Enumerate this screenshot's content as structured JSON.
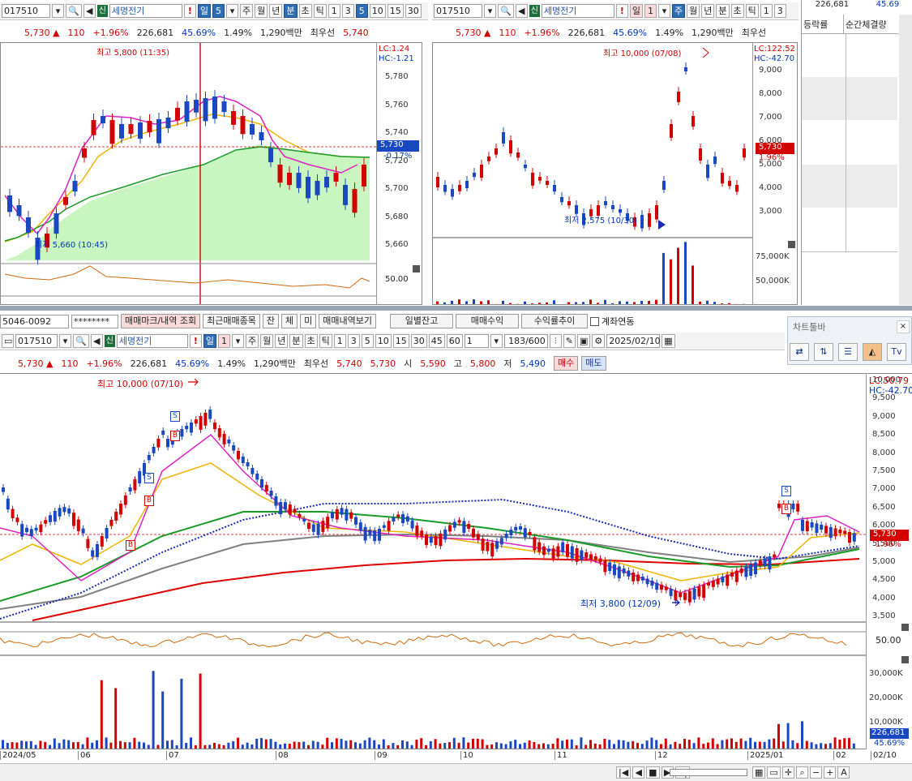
{
  "left_panel": {
    "toolbar": {
      "code": "017510",
      "tag": "신",
      "name": "세명전기",
      "excl": "!",
      "period": "일",
      "period_num": "5",
      "tabs": [
        "주",
        "월",
        "년",
        "분",
        "초",
        "틱"
      ],
      "nums": [
        "1",
        "3",
        "5",
        "10",
        "15",
        "30"
      ]
    },
    "quote": {
      "price": "5,730 ▲",
      "change": "110",
      "pct": "+1.96%",
      "volume": "226,681",
      "ratio": "45.69%",
      "turnover": "1.49%",
      "amount": "1,290백만",
      "best_label": "최우선",
      "best": "5,740"
    },
    "chart": {
      "lc": "LC:1.24",
      "hc": "HC:-1.21",
      "high_label": "최고 5,800 (11:35)",
      "low_label": "최저 5,660 (10:45)",
      "price_box": "5,730",
      "price_sub": "-0.17%",
      "yticks": [
        "5,780",
        "5,760",
        "5,740",
        "5,720",
        "5,700",
        "5,680",
        "5,660"
      ],
      "sub_tick": "50.00"
    }
  },
  "right_panel": {
    "toolbar": {
      "code": "017510",
      "tag": "신",
      "name": "세명전기",
      "excl": "!",
      "period": "일",
      "period_num": "1",
      "tabs": [
        "주",
        "월",
        "년",
        "분",
        "초",
        "틱"
      ],
      "nums": [
        "1",
        "3"
      ]
    },
    "quote": {
      "price": "5,730 ▲",
      "change": "110",
      "pct": "+1.96%",
      "volume": "226,681",
      "ratio": "45.69%",
      "turnover": "1.49%",
      "amount": "1,290백만",
      "best_label": "최우선"
    },
    "chart": {
      "lc": "LC:122.52",
      "hc": "HC:-42.70",
      "high_label": "최고 10,000 (07/08)",
      "low_label": "최저 2,575 (10/30)",
      "price_box": "5,730",
      "price_sub": "1.96%",
      "yticks": [
        "9,000",
        "8,000",
        "7,000",
        "6,000",
        "5,000",
        "4,000",
        "3,000"
      ],
      "vol_ticks": [
        "75,000K",
        "50,000K"
      ]
    }
  },
  "far_right": {
    "volume": "226,681",
    "ratio": "45.69",
    "headers": [
      "등락률",
      "순간체결량"
    ]
  },
  "account_bar": {
    "account": "5046-0092",
    "password": "********",
    "buttons": [
      "매매마크/내역 조회",
      "최근매매종목",
      "잔",
      "체",
      "미",
      "매매내역보기",
      "일별잔고",
      "매매수익",
      "수익률추이"
    ],
    "checkbox_label": "계좌연동"
  },
  "toolbox": {
    "title": "차트툴바",
    "icons": [
      "link-icon",
      "compare-icon",
      "list-icon",
      "area-chart-icon",
      "tv-icon"
    ]
  },
  "main_panel": {
    "toolbar": {
      "code": "017510",
      "tag": "신",
      "name": "세명전기",
      "excl": "!",
      "period": "일",
      "period_num": "1",
      "tabs": [
        "주",
        "월",
        "년",
        "분",
        "초",
        "틱"
      ],
      "nums": [
        "1",
        "3",
        "5",
        "10",
        "15",
        "30",
        "45",
        "60"
      ],
      "count_sel": "1",
      "count": "183/600",
      "date": "2025/02/10"
    },
    "quote": {
      "price": "5,730 ▲",
      "change": "110",
      "pct": "+1.96%",
      "volume": "226,681",
      "ratio": "45.69%",
      "turnover": "1.49%",
      "amount": "1,290백만",
      "best_label": "최우선",
      "best_ask": "5,740",
      "best_bid": "5,730",
      "open_label": "시",
      "open": "5,590",
      "high_label": "고",
      "high": "5,800",
      "low_label": "저",
      "low": "5,490",
      "buy": "매수",
      "sell": "매도"
    },
    "chart": {
      "lc": "LC:50.79",
      "hc": "HC:-42.70",
      "high_label": "최고 10,000 (07/10)",
      "low_label": "최저 3,800 (12/09)",
      "price_box": "5,730",
      "price_sub": "1.96%",
      "yticks": [
        "10,000",
        "9,500",
        "9,000",
        "8,500",
        "8,000",
        "7,500",
        "7,000",
        "6,500",
        "6,000",
        "5,500",
        "5,000",
        "4,500",
        "4,000",
        "3,500"
      ],
      "osc_tick": "50.00",
      "vol_ticks": [
        "30,000K",
        "20,000K",
        "10,000K"
      ],
      "vol_box": "226,681",
      "vol_pct": "45.69%",
      "dates": [
        "2024/05",
        "06",
        "07",
        "08",
        "09",
        "10",
        "11",
        "12",
        "2025/01",
        "02",
        "02/10"
      ],
      "markers": [
        "S",
        "B"
      ]
    }
  },
  "colors": {
    "up": "#d40000",
    "down": "#0036b4",
    "ma5": "#e020c0",
    "ma20": "#f0b400",
    "ma60": "#1a9a28",
    "ma120": "#808080",
    "ma240": "#e00000",
    "dotted": "#1a2ab4",
    "fill": "#c8f5c0"
  }
}
